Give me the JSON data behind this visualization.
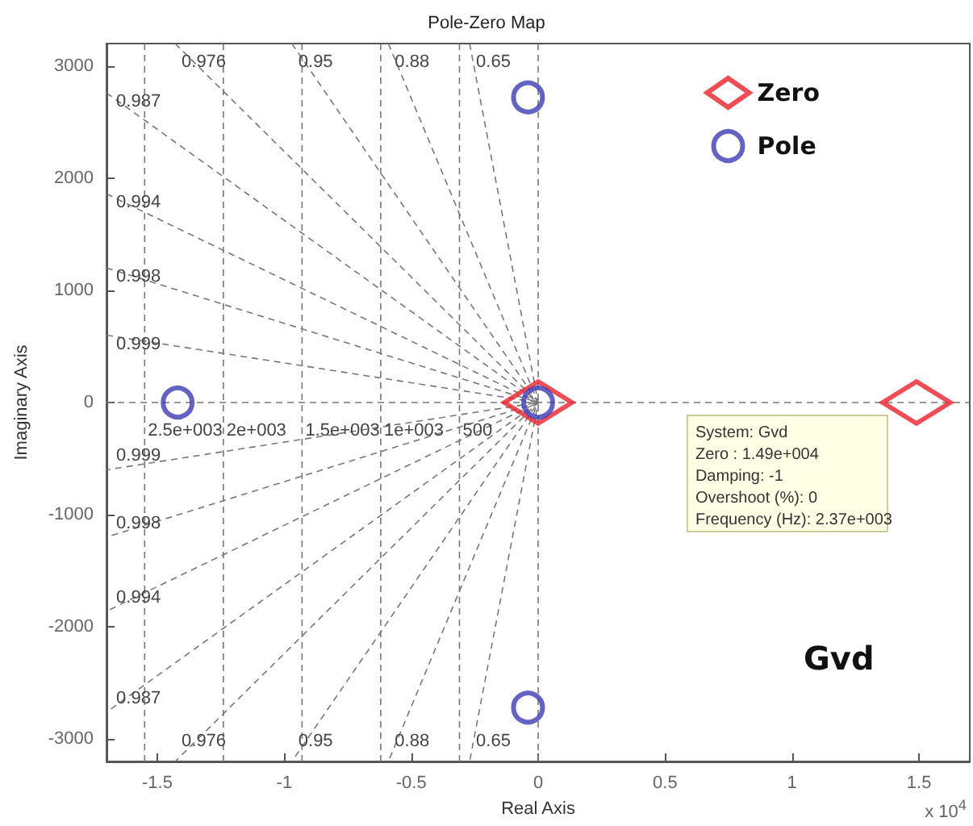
{
  "chart_data": {
    "type": "scatter",
    "title": "Pole-Zero Map",
    "xlabel": "Real Axis",
    "ylabel": "Imaginary Axis",
    "xlim": [
      -1.7,
      1.7
    ],
    "xticks": [
      -1.5,
      -1,
      -0.5,
      0,
      0.5,
      1,
      1.5
    ],
    "ylim": [
      -3200,
      3200
    ],
    "yticks": [
      -3000,
      -2000,
      -1000,
      0,
      1000,
      2000,
      3000
    ],
    "grid": false,
    "legend": "top right",
    "series": [
      {
        "name": "0.999",
        "type": "line",
        "color": "#777777",
        "line_style": "dashed",
        "marker": "none",
        "x": [
          -1.7,
          0,
          -1.7
        ],
        "values": [
          600,
          0,
          -600
        ]
      },
      {
        "name": "0.998",
        "type": "line",
        "color": "#777777",
        "line_style": "dashed",
        "marker": "none",
        "x": [
          -1.7,
          0,
          -1.7
        ],
        "values": [
          1200,
          0,
          -1200
        ]
      },
      {
        "name": "0.994",
        "type": "line",
        "color": "#777777",
        "line_style": "dashed",
        "marker": "none",
        "x": [
          -1.7,
          0,
          -1.7
        ],
        "values": [
          1860,
          0,
          -1860
        ]
      },
      {
        "name": "0.987",
        "type": "line",
        "color": "#777777",
        "line_style": "dashed",
        "marker": "none",
        "x": [
          -1.7,
          0,
          -1.7
        ],
        "values": [
          2760,
          0,
          -2760
        ]
      },
      {
        "name": "0.976",
        "type": "line",
        "color": "#777777",
        "line_style": "dashed",
        "marker": "none",
        "x": [
          -1.43,
          0,
          -1.43
        ],
        "values": [
          3200,
          0,
          -3200
        ]
      },
      {
        "name": "0.95",
        "type": "line",
        "color": "#777777",
        "line_style": "dashed",
        "marker": "none",
        "x": [
          -0.97,
          0,
          -0.97
        ],
        "values": [
          3200,
          0,
          -3200
        ]
      },
      {
        "name": "0.88",
        "type": "line",
        "color": "#777777",
        "line_style": "dashed",
        "marker": "none",
        "x": [
          -0.59,
          0,
          -0.59
        ],
        "values": [
          3200,
          0,
          -3200
        ]
      },
      {
        "name": "0.65",
        "type": "line",
        "color": "#777777",
        "line_style": "dashed",
        "marker": "none",
        "x": [
          -0.27,
          0,
          -0.27
        ],
        "values": [
          3200,
          0,
          -3200
        ]
      },
      {
        "name": "500",
        "type": "line",
        "color": "#777777",
        "line_style": "dashed",
        "marker": "none",
        "x": [
          -0.31,
          -0.31
        ],
        "values": [
          3200,
          -3200
        ]
      },
      {
        "name": "1e+003",
        "type": "line",
        "color": "#777777",
        "line_style": "dashed",
        "marker": "none",
        "x": [
          -0.62,
          -0.62
        ],
        "values": [
          3200,
          -3200
        ]
      },
      {
        "name": "1.5e+003",
        "type": "line",
        "color": "#777777",
        "line_style": "dashed",
        "marker": "none",
        "x": [
          -0.93,
          -0.93
        ],
        "values": [
          3200,
          -3200
        ]
      },
      {
        "name": "2e+003",
        "type": "line",
        "color": "#777777",
        "line_style": "dashed",
        "marker": "none",
        "x": [
          -1.24,
          -1.24
        ],
        "values": [
          3200,
          -3200
        ]
      },
      {
        "name": "2.5e+003",
        "type": "line",
        "color": "#777777",
        "line_style": "dashed",
        "marker": "none",
        "x": [
          -1.55,
          -1.55
        ],
        "values": [
          3200,
          -3200
        ]
      },
      {
        "type": "line",
        "color": "#777777",
        "line_style": "dashed",
        "marker": "none",
        "x": [
          0,
          0
        ],
        "values": [
          3200,
          -3200
        ]
      },
      {
        "type": "line",
        "color": "#777777",
        "line_style": "dashed",
        "marker": "none",
        "x": [
          -1.7,
          1.7
        ],
        "values": [
          0,
          0
        ]
      },
      {
        "name": "Zero",
        "marker": "diamond",
        "color": "#e8202a",
        "x": [
          0,
          1.49
        ],
        "values": [
          0,
          0
        ]
      },
      {
        "name": "Pole",
        "marker": "circle",
        "color": "#3c3cb4",
        "x": [
          -1.42,
          -0.04,
          -0.04,
          0
        ],
        "values": [
          0,
          2720,
          -2720,
          0
        ]
      }
    ],
    "annotations": [
      {
        "text": "System: Gvd\nZero : 1.49e+004\nDamping: -1\nOvershoot (%): 0\nFrequency (Hz): 2.37e+003",
        "x": 1.49,
        "y": 0
      },
      "Gvd",
      "x 10$^{4}$"
    ]
  }
}
